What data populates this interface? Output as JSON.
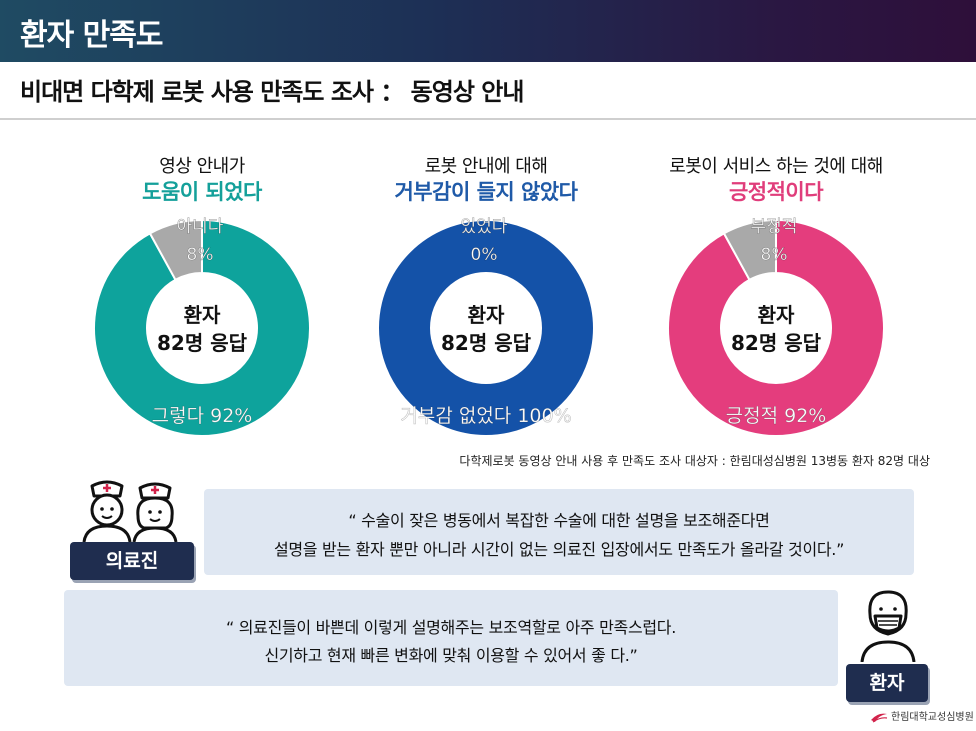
{
  "header": {
    "title": "환자 만족도"
  },
  "subtitle": "비대면 다학제 로봇 사용 만족도 조사 ： 동영상 안내",
  "chart_data": [
    {
      "type": "pie",
      "caption_line1": "영상 안내가",
      "caption_line2": "도움이 되었다",
      "caption_color": "#14a09a",
      "center_label": [
        "환자",
        "82명 응답"
      ],
      "slices": [
        {
          "label": "그렇다",
          "value": 92,
          "display": "그렇다 92%",
          "color": "#0ea39c"
        },
        {
          "label": "아니다",
          "value": 8,
          "display": [
            "아니다",
            "8%"
          ],
          "color": "#a9a9a9"
        }
      ]
    },
    {
      "type": "pie",
      "caption_line1": "로봇 안내에 대해",
      "caption_line2": "거부감이 들지 않았다",
      "caption_color": "#1f5aa8",
      "center_label": [
        "환자",
        "82명 응답"
      ],
      "slices": [
        {
          "label": "거부감 없었다",
          "value": 100,
          "display": "거부감 없었다 100%",
          "color": "#1452a8"
        },
        {
          "label": "있었다",
          "value": 0,
          "display": [
            "있었다",
            "0%"
          ],
          "color": "#a9a9a9"
        }
      ]
    },
    {
      "type": "pie",
      "caption_line1": "로봇이 서비스 하는 것에 대해",
      "caption_line2": "긍정적이다",
      "caption_color": "#e03d7b",
      "center_label": [
        "환자",
        "82명 응답"
      ],
      "slices": [
        {
          "label": "긍정적",
          "value": 92,
          "display": "긍정적 92%",
          "color": "#e43d7d"
        },
        {
          "label": "부정적",
          "value": 8,
          "display": [
            "부정적",
            "8%"
          ],
          "color": "#a9a9a9"
        }
      ]
    }
  ],
  "source_note": "다학제로봇 동영상 안내 사용 후 만족도 조사 대상자 : 한림대성심병원 13병동 환자 82명 대상",
  "quotes": {
    "staff": {
      "role": "의료진",
      "line1": "“ 수술이 잦은 병동에서 복잡한 수술에 대한 설명을 보조해준다면",
      "line2": "설명을 받는 환자 뿐만 아니라 시간이 없는 의료진 입장에서도 만족도가 올라갈 것이다.”"
    },
    "patient": {
      "role": "환자",
      "line1": "“ 의료진들이 바쁜데 이렇게 설명해주는 보조역할로 아주 만족스럽다.",
      "line2": "신기하고 현재 빠른 변화에 맞춰 이용할 수 있어서 좋 다.”"
    }
  },
  "footer": {
    "logo_text": "한림대학교성심병원",
    "logo_color": "#d2234b"
  }
}
